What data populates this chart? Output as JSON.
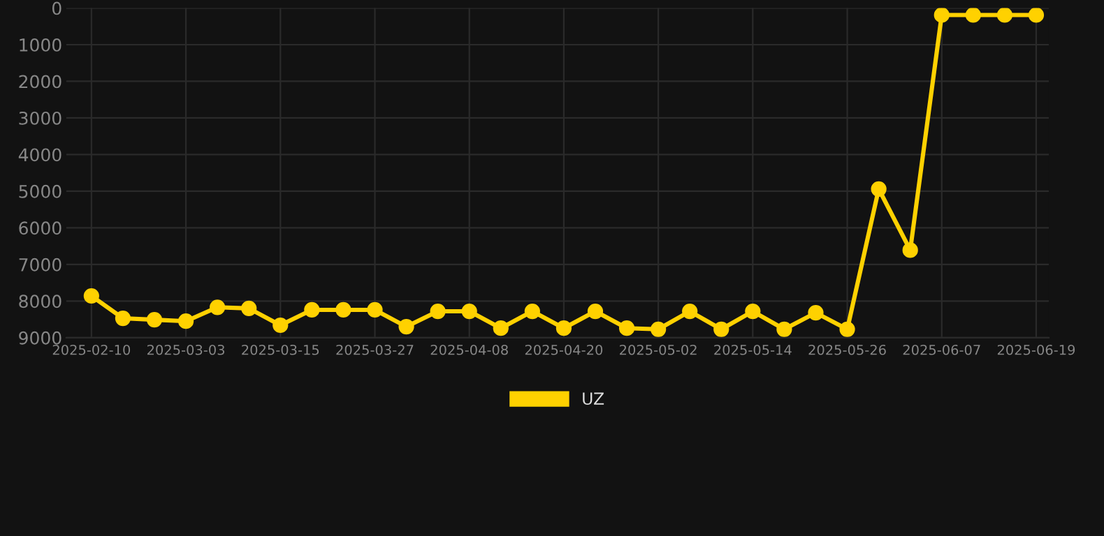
{
  "chart_data": {
    "type": "line",
    "categories": [
      "2025-02-10",
      null,
      null,
      "2025-03-03",
      null,
      null,
      "2025-03-15",
      null,
      null,
      "2025-03-27",
      null,
      null,
      "2025-04-08",
      null,
      null,
      "2025-04-20",
      null,
      null,
      "2025-05-02",
      null,
      null,
      "2025-05-14",
      null,
      null,
      "2025-05-26",
      null,
      null,
      "2025-06-07",
      null,
      null,
      "2025-06-19"
    ],
    "series": [
      {
        "name": "UZ",
        "color": "#ffd100",
        "values": [
          7860,
          8470,
          8510,
          8550,
          8170,
          8200,
          8660,
          8240,
          8240,
          8240,
          8700,
          8280,
          8280,
          8740,
          8280,
          8740,
          8280,
          8740,
          8770,
          8280,
          8770,
          8280,
          8770,
          8320,
          8770,
          4940,
          6610,
          190,
          190,
          190,
          190
        ]
      }
    ],
    "ylim": [
      9000,
      0
    ],
    "yticks": [
      0,
      1000,
      2000,
      3000,
      4000,
      5000,
      6000,
      7000,
      8000,
      9000
    ],
    "grid": true,
    "legend": "bottom",
    "marker": "circle",
    "line_style": "solid"
  }
}
